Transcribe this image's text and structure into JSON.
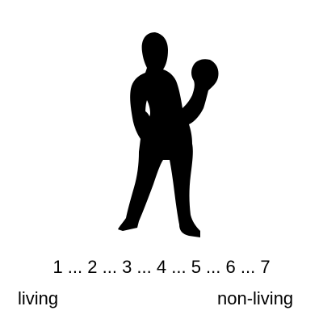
{
  "stimulus": {
    "icon": "boxer-silhouette-icon",
    "color": "#000000"
  },
  "rating_scale": {
    "points": [
      "1",
      "2",
      "3",
      "4",
      "5",
      "6",
      "7"
    ],
    "separator": " ... ",
    "left_anchor": "living",
    "right_anchor": "non-living"
  }
}
